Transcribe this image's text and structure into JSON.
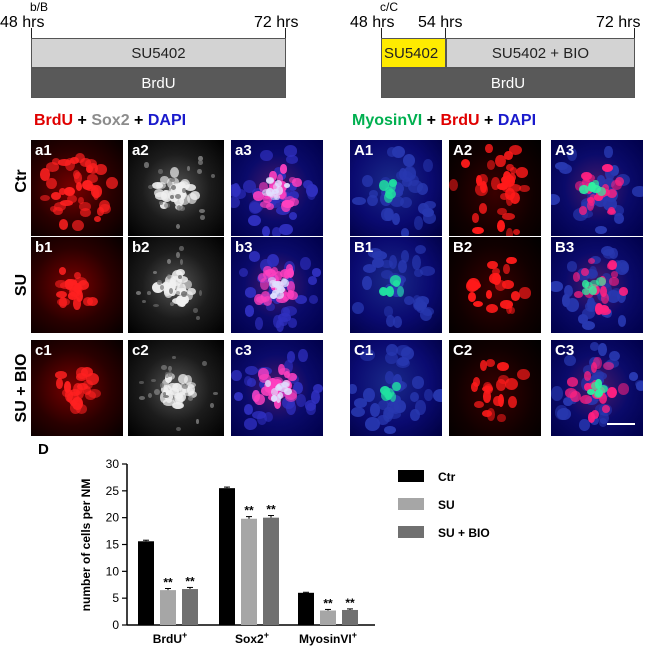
{
  "timeline_left": {
    "tag": "b/B",
    "start": "48 hrs",
    "end": "72 hrs",
    "bar1": "SU5402",
    "bar2": "BrdU"
  },
  "timeline_right": {
    "tag": "c/C",
    "start": "48 hrs",
    "mid": "54 hrs",
    "end": "72 hrs",
    "bar1a": "SU5402",
    "bar1b": "SU5402 + BIO",
    "bar2": "BrdU"
  },
  "stain_left": {
    "s1": "BrdU",
    "p1": " + ",
    "s2": "Sox2",
    "p2": " + ",
    "s3": "DAPI"
  },
  "stain_right": {
    "s1": "MyosinVI",
    "p1": " + ",
    "s2": "BrdU",
    "p2": " + ",
    "s3": "DAPI"
  },
  "rows": [
    "Ctr",
    "SU",
    "SU + BIO"
  ],
  "panels_left": [
    [
      "a1",
      "a2",
      "a3"
    ],
    [
      "b1",
      "b2",
      "b3"
    ],
    [
      "c1",
      "c2",
      "c3"
    ]
  ],
  "panels_right": [
    [
      "A1",
      "A2",
      "A3"
    ],
    [
      "B1",
      "B2",
      "B3"
    ],
    [
      "C1",
      "C2",
      "C3"
    ]
  ],
  "colors": {
    "red": "#e00000",
    "gray": "#8c8c8c",
    "blue": "#1a1acc",
    "green": "#00b050"
  },
  "panel_d_label": "D",
  "chart_data": {
    "type": "bar",
    "ylabel": "number of cells per NM",
    "xlabel": "",
    "ylim": [
      0,
      30
    ],
    "yticks": [
      0,
      5,
      10,
      15,
      20,
      25,
      30
    ],
    "categories": [
      "BrdU+",
      "Sox2+",
      "MyosinVI+"
    ],
    "category_labels": [
      {
        "base": "BrdU",
        "sup": "+"
      },
      {
        "base": "Sox2",
        "sup": "+"
      },
      {
        "base": "MyosinVI",
        "sup": "+"
      }
    ],
    "series": [
      {
        "name": "Ctr",
        "color": "#000000",
        "values": [
          15.6,
          25.5,
          6.0
        ],
        "errors": [
          0.2,
          0.2,
          0.1
        ]
      },
      {
        "name": "SU",
        "color": "#a6a6a6",
        "values": [
          6.5,
          19.8,
          2.7
        ],
        "errors": [
          0.3,
          0.4,
          0.2
        ]
      },
      {
        "name": "SU + BIO",
        "color": "#707070",
        "values": [
          6.7,
          20.0,
          2.8
        ],
        "errors": [
          0.3,
          0.4,
          0.2
        ]
      }
    ],
    "annotations": {
      "significance": "**"
    },
    "legend_position": "right",
    "grid": false
  }
}
